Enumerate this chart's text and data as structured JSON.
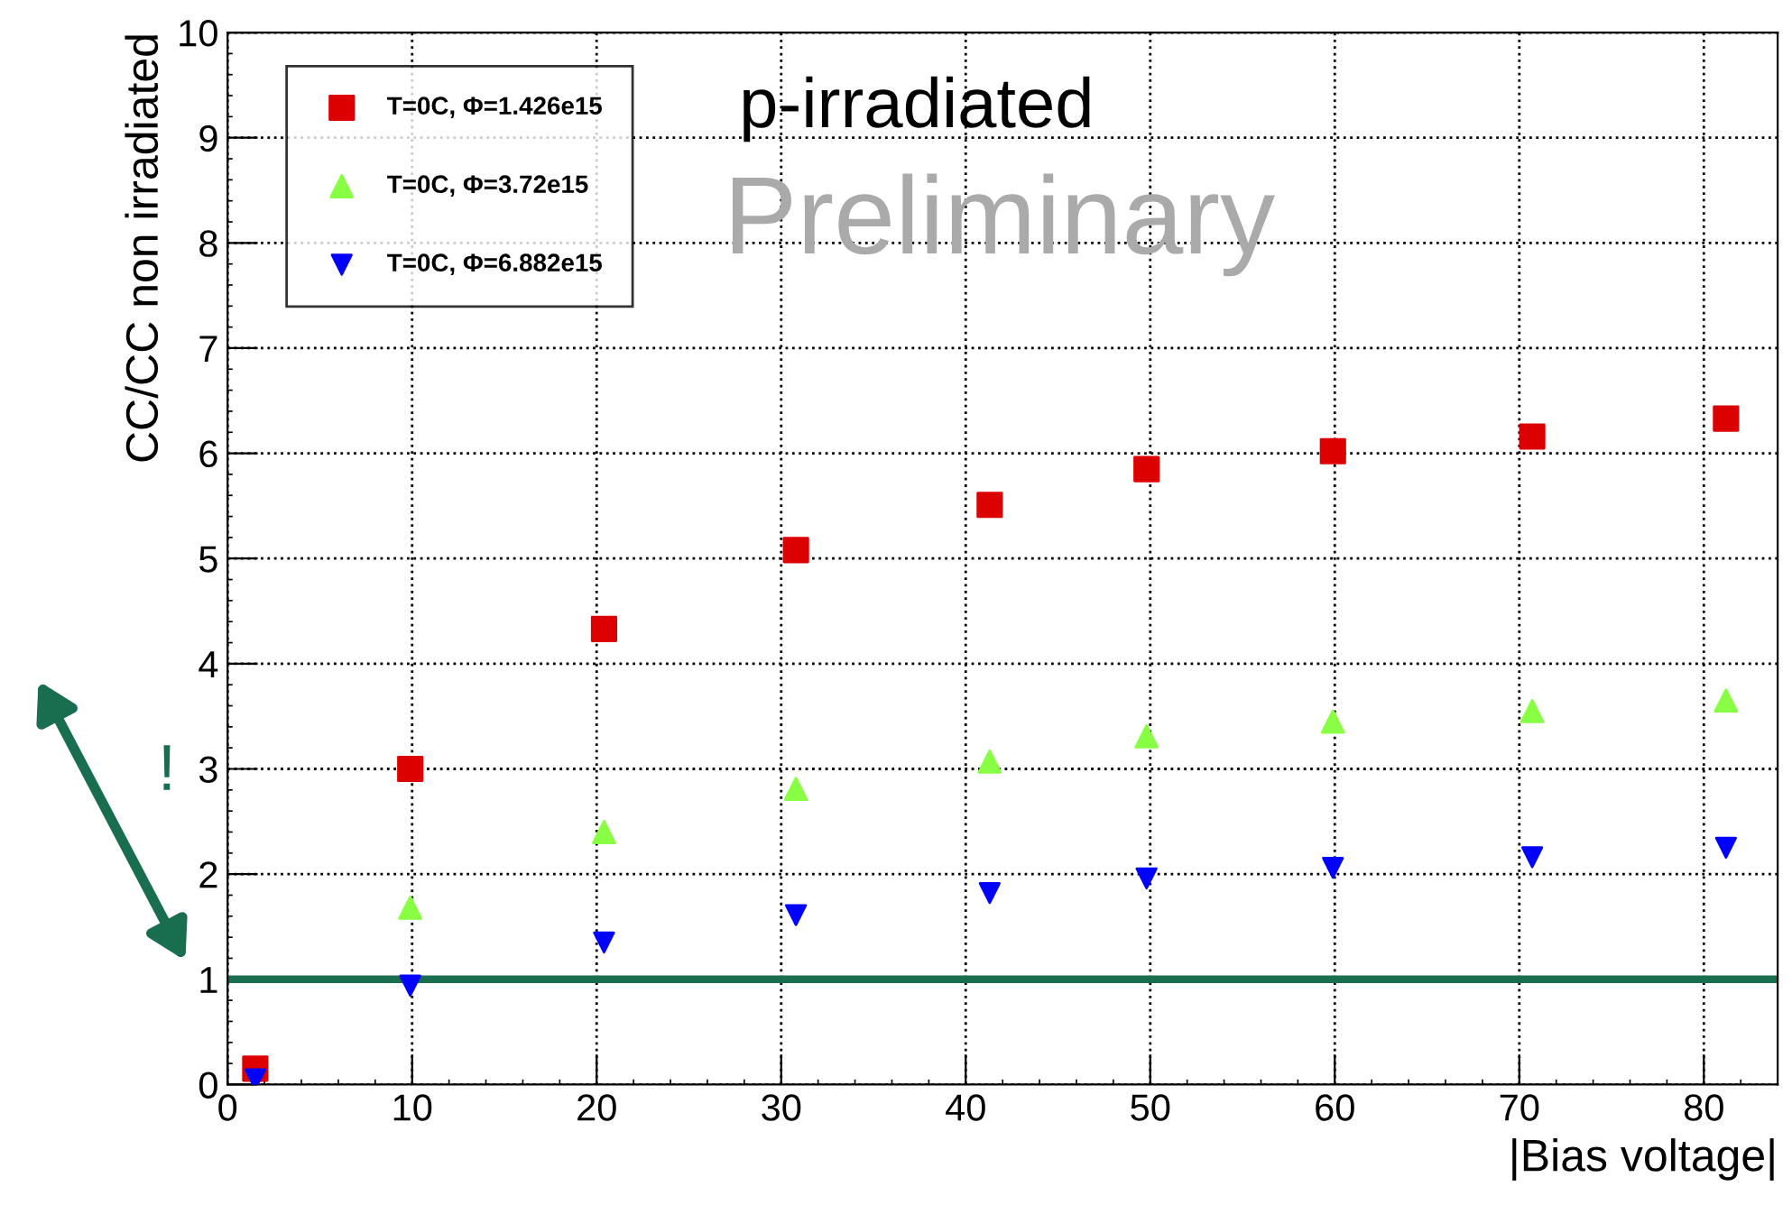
{
  "chart_data": {
    "type": "scatter",
    "xlabel": "|Bias voltage|",
    "ylabel": "CC/CC non irradiated",
    "xlim": [
      0,
      84
    ],
    "ylim": [
      0,
      10
    ],
    "xticks": [
      0,
      10,
      20,
      30,
      40,
      50,
      60,
      70,
      80
    ],
    "yticks": [
      0,
      1,
      2,
      3,
      4,
      5,
      6,
      7,
      8,
      9,
      10
    ],
    "grid": true,
    "legend": "top left",
    "series": [
      {
        "name": "T=0C, Φ=1.426e15",
        "color": "#dd0000",
        "marker": "square",
        "x": [
          1.5,
          9.9,
          20.4,
          30.8,
          41.3,
          49.8,
          59.9,
          70.7,
          81.2
        ],
        "values": [
          0.15,
          3.0,
          4.33,
          5.08,
          5.51,
          5.85,
          6.02,
          6.16,
          6.33
        ]
      },
      {
        "name": "T=0C, Φ=3.72e15",
        "color": "#88ff44",
        "marker": "triangle",
        "x": [
          9.9,
          20.4,
          30.8,
          41.3,
          49.8,
          59.9,
          70.7,
          81.2
        ],
        "values": [
          1.68,
          2.4,
          2.81,
          3.07,
          3.31,
          3.45,
          3.55,
          3.65
        ]
      },
      {
        "name": "T=0C, Φ=6.882e15",
        "color": "#0000ff",
        "marker": "triangle_down",
        "x": [
          1.5,
          9.9,
          20.4,
          30.8,
          41.3,
          49.8,
          59.9,
          70.7,
          81.2
        ],
        "values": [
          0.05,
          0.94,
          1.35,
          1.61,
          1.82,
          1.96,
          2.06,
          2.16,
          2.25
        ]
      }
    ],
    "ref_lines": [
      {
        "axis": "y",
        "value": 1,
        "color": "#1a6e50"
      }
    ],
    "annotations": [
      "p-irradiated",
      "Preliminary",
      "!"
    ]
  }
}
